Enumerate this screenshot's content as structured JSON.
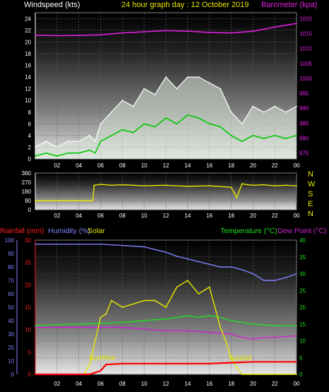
{
  "header": {
    "left": "Windspeed (kts)",
    "center": "24 hour graph day : 12 October 2019",
    "right": "Barometer (kpa)"
  },
  "panel3_header": {
    "rainfall": "Rainfall (mm)",
    "humidity": "Humidity (%)",
    "solar": "Solar",
    "temperature": "Temperature (°C)",
    "dewpoint": "Dew Point (°C)"
  },
  "annotations": {
    "sunrise": "SunRise",
    "sunset": "SunSet"
  },
  "colors": {
    "wind_gust": "#ffffff",
    "wind_avg": "#00c800",
    "barometer": "#e020e0",
    "direction": "#e8e800",
    "rain": "#ff0000",
    "humidity": "#8080ff",
    "solar": "#e8e800",
    "temperature": "#20e020",
    "dewpoint": "#d020d0"
  },
  "chart_data": [
    {
      "type": "line",
      "title": "24 hour graph day : 12 October 2019",
      "xlabel": "",
      "x_ticks": [
        "02",
        "04",
        "06",
        "08",
        "10",
        "12",
        "14",
        "16",
        "18",
        "20",
        "22",
        "00"
      ],
      "xlim": [
        0,
        24
      ],
      "y_left_label": "Windspeed (kts)",
      "y_left_ticks": [
        0,
        2,
        4,
        6,
        8,
        10,
        12,
        14,
        16,
        18,
        20,
        22,
        24
      ],
      "y_left_lim": [
        0,
        25
      ],
      "y_right_label": "Barometer (kpa)",
      "y_right_ticks": [
        975,
        980,
        985,
        990,
        995,
        1000,
        1005,
        1010,
        1015,
        1020
      ],
      "y_right_lim": [
        973,
        1022
      ],
      "series": [
        {
          "name": "Gust",
          "axis": "left",
          "x": [
            0,
            1,
            2,
            3,
            4,
            5,
            5.5,
            6,
            7,
            8,
            9,
            10,
            11,
            12,
            13,
            14,
            15,
            16,
            17,
            18,
            19,
            20,
            21,
            22,
            23,
            24
          ],
          "values": [
            2,
            3,
            2,
            3,
            3,
            4,
            3,
            6,
            8,
            10,
            9,
            12,
            11,
            14,
            12,
            14,
            14,
            13,
            12,
            8,
            6,
            9,
            8,
            9,
            8,
            9
          ]
        },
        {
          "name": "Average",
          "axis": "left",
          "x": [
            0,
            1,
            2,
            3,
            4,
            5,
            5.5,
            6,
            7,
            8,
            9,
            10,
            11,
            12,
            13,
            14,
            15,
            16,
            17,
            18,
            19,
            20,
            21,
            22,
            23,
            24
          ],
          "values": [
            0.5,
            1,
            0.5,
            1,
            1,
            1.5,
            1,
            3,
            4,
            5,
            4.5,
            6,
            5.5,
            7,
            6,
            7.5,
            7,
            6,
            5.5,
            4,
            3,
            4,
            3.5,
            4,
            3.5,
            4
          ]
        },
        {
          "name": "Barometer",
          "axis": "right",
          "x": [
            0,
            2,
            4,
            6,
            8,
            10,
            12,
            14,
            16,
            18,
            20,
            22,
            24
          ],
          "values": [
            1014.5,
            1014.3,
            1014.4,
            1014.6,
            1015.2,
            1015.6,
            1016.0,
            1015.8,
            1015.4,
            1015.2,
            1015.8,
            1017.2,
            1018.4
          ]
        }
      ]
    },
    {
      "type": "line",
      "title": "",
      "x_ticks": [
        "02",
        "04",
        "06",
        "08",
        "10",
        "12",
        "14",
        "16",
        "18",
        "20",
        "22",
        "00"
      ],
      "xlim": [
        0,
        24
      ],
      "y_left_ticks": [
        0,
        90,
        180,
        270,
        360
      ],
      "y_left_lim": [
        0,
        360
      ],
      "y_right_ticks": [
        "N",
        "W",
        "S",
        "E",
        "N"
      ],
      "series": [
        {
          "name": "Wind Direction",
          "axis": "left",
          "x": [
            0,
            5.3,
            5.4,
            6,
            7,
            8,
            10,
            12,
            14,
            16,
            18,
            18.5,
            19,
            19.5,
            20,
            21,
            22,
            23,
            24
          ],
          "values": [
            90,
            90,
            240,
            250,
            240,
            245,
            235,
            240,
            230,
            235,
            220,
            120,
            255,
            245,
            240,
            245,
            235,
            240,
            235
          ]
        }
      ]
    },
    {
      "type": "line",
      "title": "",
      "x_ticks": [
        "02",
        "04",
        "06",
        "08",
        "10",
        "12",
        "14",
        "16",
        "18",
        "20",
        "22",
        "00"
      ],
      "xlim": [
        0,
        24
      ],
      "y_rain_ticks": [
        0,
        5,
        10,
        15,
        20,
        25,
        30
      ],
      "y_rain_lim": [
        0,
        30
      ],
      "y_humidity_ticks": [
        0,
        10,
        20,
        30,
        40,
        50,
        60,
        70,
        80,
        90,
        100
      ],
      "y_humidity_lim": [
        0,
        100
      ],
      "y_temp_ticks": [
        0,
        5,
        10,
        15,
        20,
        25,
        30,
        35,
        40
      ],
      "y_temp_lim": [
        0,
        40
      ],
      "series": [
        {
          "name": "Rainfall",
          "axis": "rain",
          "x": [
            0,
            5,
            6,
            6.5,
            8,
            10,
            12,
            14,
            16,
            18,
            20,
            22,
            24
          ],
          "values": [
            0,
            0,
            0.8,
            2.2,
            2.4,
            2.4,
            2.4,
            2.4,
            2.4,
            2.6,
            2.8,
            2.8,
            2.8
          ]
        },
        {
          "name": "Humidity",
          "axis": "humidity",
          "x": [
            0,
            2,
            4,
            6,
            8,
            10,
            11,
            12,
            13,
            14,
            15,
            16,
            17,
            18,
            19,
            20,
            21,
            22,
            23,
            24
          ],
          "values": [
            97,
            97,
            97,
            97,
            96,
            95,
            93,
            91,
            88,
            86,
            84,
            82,
            80,
            80,
            78,
            75,
            70,
            70,
            72,
            75
          ]
        },
        {
          "name": "Solar",
          "axis": "temp",
          "x": [
            0,
            4.5,
            5,
            5.5,
            6,
            6.5,
            7,
            8,
            9,
            10,
            11,
            12,
            13,
            14,
            15,
            16,
            17,
            17.5,
            18,
            18.5,
            19,
            24
          ],
          "values": [
            0,
            0,
            3,
            10,
            17,
            18,
            22,
            20,
            21,
            22,
            22,
            20,
            26,
            28,
            24,
            26,
            14,
            10,
            5,
            2,
            0,
            0
          ]
        },
        {
          "name": "Temperature",
          "axis": "temp",
          "x": [
            0,
            2,
            4,
            6,
            8,
            10,
            12,
            13,
            14,
            15,
            16,
            17,
            18,
            19,
            20,
            22,
            24
          ],
          "values": [
            14.5,
            14.8,
            15,
            15.2,
            15.5,
            16,
            16.5,
            17,
            17.5,
            17,
            17.5,
            17,
            16,
            15.5,
            15,
            14.5,
            14.5
          ]
        },
        {
          "name": "Dew Point",
          "axis": "temp",
          "x": [
            0,
            2,
            4,
            6,
            8,
            10,
            12,
            14,
            16,
            18,
            19,
            20,
            21,
            22,
            24
          ],
          "values": [
            14,
            14,
            14,
            14,
            14,
            13.5,
            13,
            13,
            12.5,
            12,
            11,
            10.5,
            11,
            11,
            11.5
          ]
        }
      ]
    }
  ]
}
